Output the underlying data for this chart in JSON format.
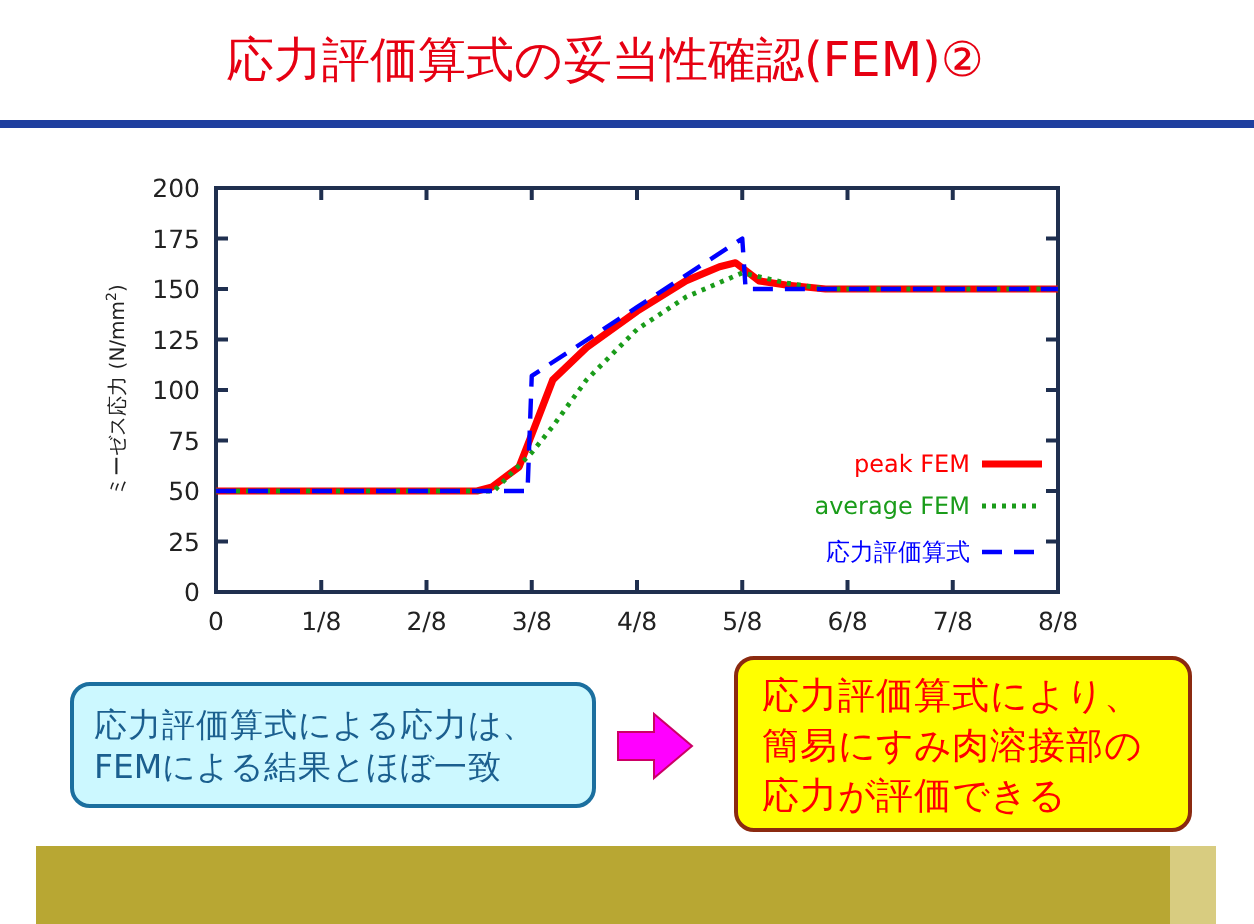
{
  "chart_data": {
    "type": "line",
    "title": "応力評価算式の妥当性確認(FEM)②",
    "ylabel": "ミーゼス応力 (N/mm$^{2}$)",
    "xlim": [
      0,
      1
    ],
    "ylim": [
      0,
      200
    ],
    "xticks": [
      0,
      {
        "value": 0.125,
        "label": "1/8"
      },
      {
        "value": 0.25,
        "label": "2/8"
      },
      {
        "value": 0.375,
        "label": "3/8"
      },
      {
        "value": 0.5,
        "label": "4/8"
      },
      {
        "value": 0.625,
        "label": "5/8"
      },
      {
        "value": 0.75,
        "label": "6/8"
      },
      {
        "value": 0.875,
        "label": "7/8"
      },
      {
        "value": 1,
        "label": "8/8"
      }
    ],
    "yticks": [
      0,
      25,
      50,
      75,
      100,
      125,
      150,
      175,
      200
    ],
    "legend": "bottom right",
    "series": [
      {
        "name": "peak FEM",
        "color": "#ff0000",
        "line_style": "solid",
        "x": [
          0,
          0.31,
          0.328,
          0.36,
          0.375,
          0.4,
          0.44,
          0.5,
          0.558,
          0.598,
          0.617,
          0.645,
          0.677,
          0.724,
          1
        ],
        "values": [
          50,
          50,
          52,
          62,
          78,
          105,
          121,
          139,
          154,
          161,
          163,
          154,
          152,
          150,
          150
        ]
      },
      {
        "name": "average FEM",
        "color": "#1a9c1a",
        "line_style": "dotted",
        "x": [
          0,
          0.33,
          0.375,
          0.4,
          0.44,
          0.5,
          0.558,
          0.625,
          0.677,
          0.724,
          1
        ],
        "values": [
          50,
          50,
          69,
          82,
          105,
          130,
          146,
          158,
          153,
          150,
          150
        ]
      },
      {
        "name": "応力評価算式",
        "color": "#0000ff",
        "line_style": "dashed",
        "x": [
          0,
          0.37,
          0.375,
          0.5,
          0.625,
          0.629,
          1
        ],
        "values": [
          50,
          50,
          107,
          141,
          175,
          150,
          150
        ]
      }
    ],
    "annotations": [
      "応力評価算式による応力は、FEMによる結果とほぼ一致",
      "応力評価算式により、簡易にすみ肉溶接部の応力が評価できる"
    ]
  }
}
